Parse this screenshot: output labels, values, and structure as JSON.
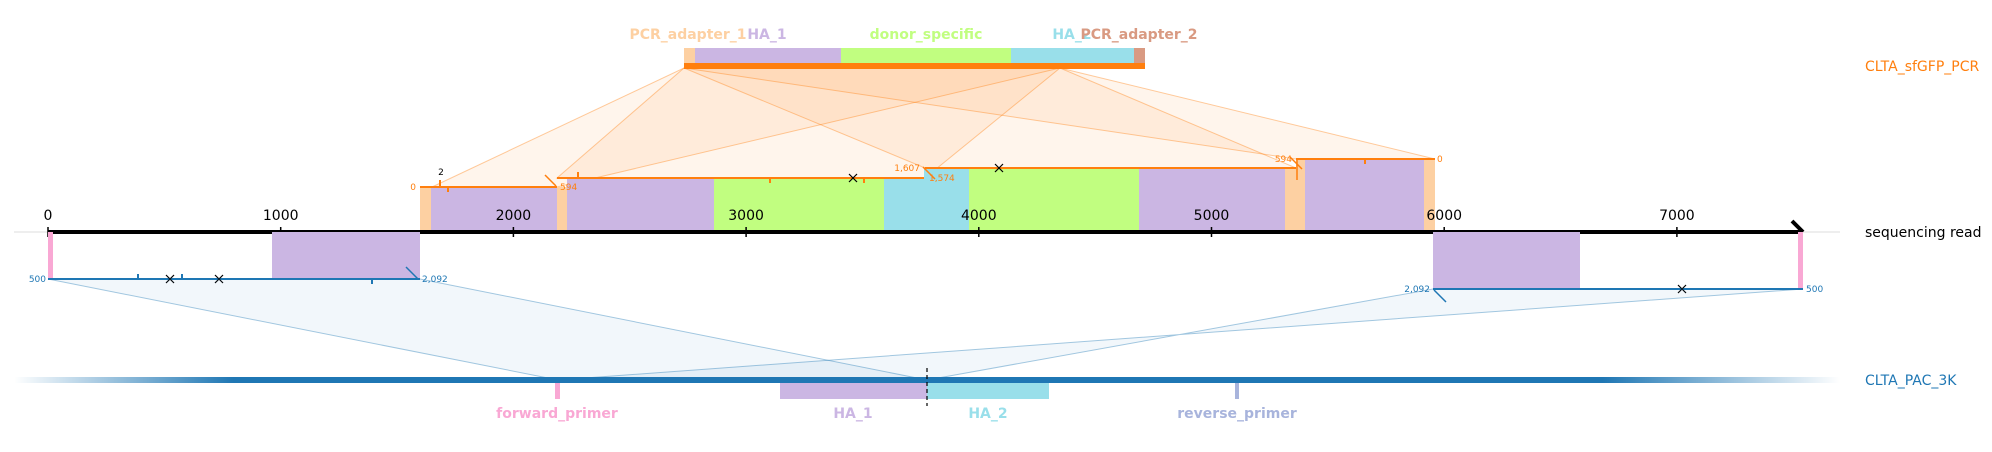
{
  "colors": {
    "pcr": "#ff7f0e",
    "pac": "#1f77b4",
    "pcr_adapter_1": "#fdd0a2",
    "ha_1": "#cbb6e3",
    "donor_specific": "#c1fe80",
    "ha_2": "#99dfea",
    "pcr_adapter_2": "#d99a82",
    "forward_primer": "#f9a8d4",
    "reverse_primer": "#a8b4dc",
    "sequencing_read": "#000000",
    "cross": "#000000"
  },
  "references": {
    "top": {
      "name": "CLTA_sfGFP_PCR"
    },
    "read": {
      "name": "sequencing read"
    },
    "bottom": {
      "name": "CLTA_PAC_3K"
    }
  },
  "top_features": [
    {
      "key": "pcr_adapter_1",
      "label": "PCR_adapter_1"
    },
    {
      "key": "ha_1",
      "label": "HA_1"
    },
    {
      "key": "donor_specific",
      "label": "donor_specific"
    },
    {
      "key": "ha_2",
      "label": "HA_2"
    },
    {
      "key": "pcr_adapter_2",
      "label": "PCR_adapter_2"
    }
  ],
  "bottom_features": [
    {
      "key": "forward_primer",
      "label": "forward_primer"
    },
    {
      "key": "ha_1",
      "label": "HA_1"
    },
    {
      "key": "ha_2",
      "label": "HA_2"
    },
    {
      "key": "reverse_primer",
      "label": "reverse_primer"
    }
  ],
  "read_axis": {
    "ticks": [
      "0",
      "1000",
      "2000",
      "3000",
      "4000",
      "5000",
      "6000",
      "7000"
    ]
  },
  "alignment_numbers": {
    "top": [
      "0",
      "2",
      "594",
      "1,607",
      "1,574",
      "594",
      "0"
    ],
    "bottom": [
      "500",
      "2,092",
      "2,092",
      "500"
    ]
  }
}
